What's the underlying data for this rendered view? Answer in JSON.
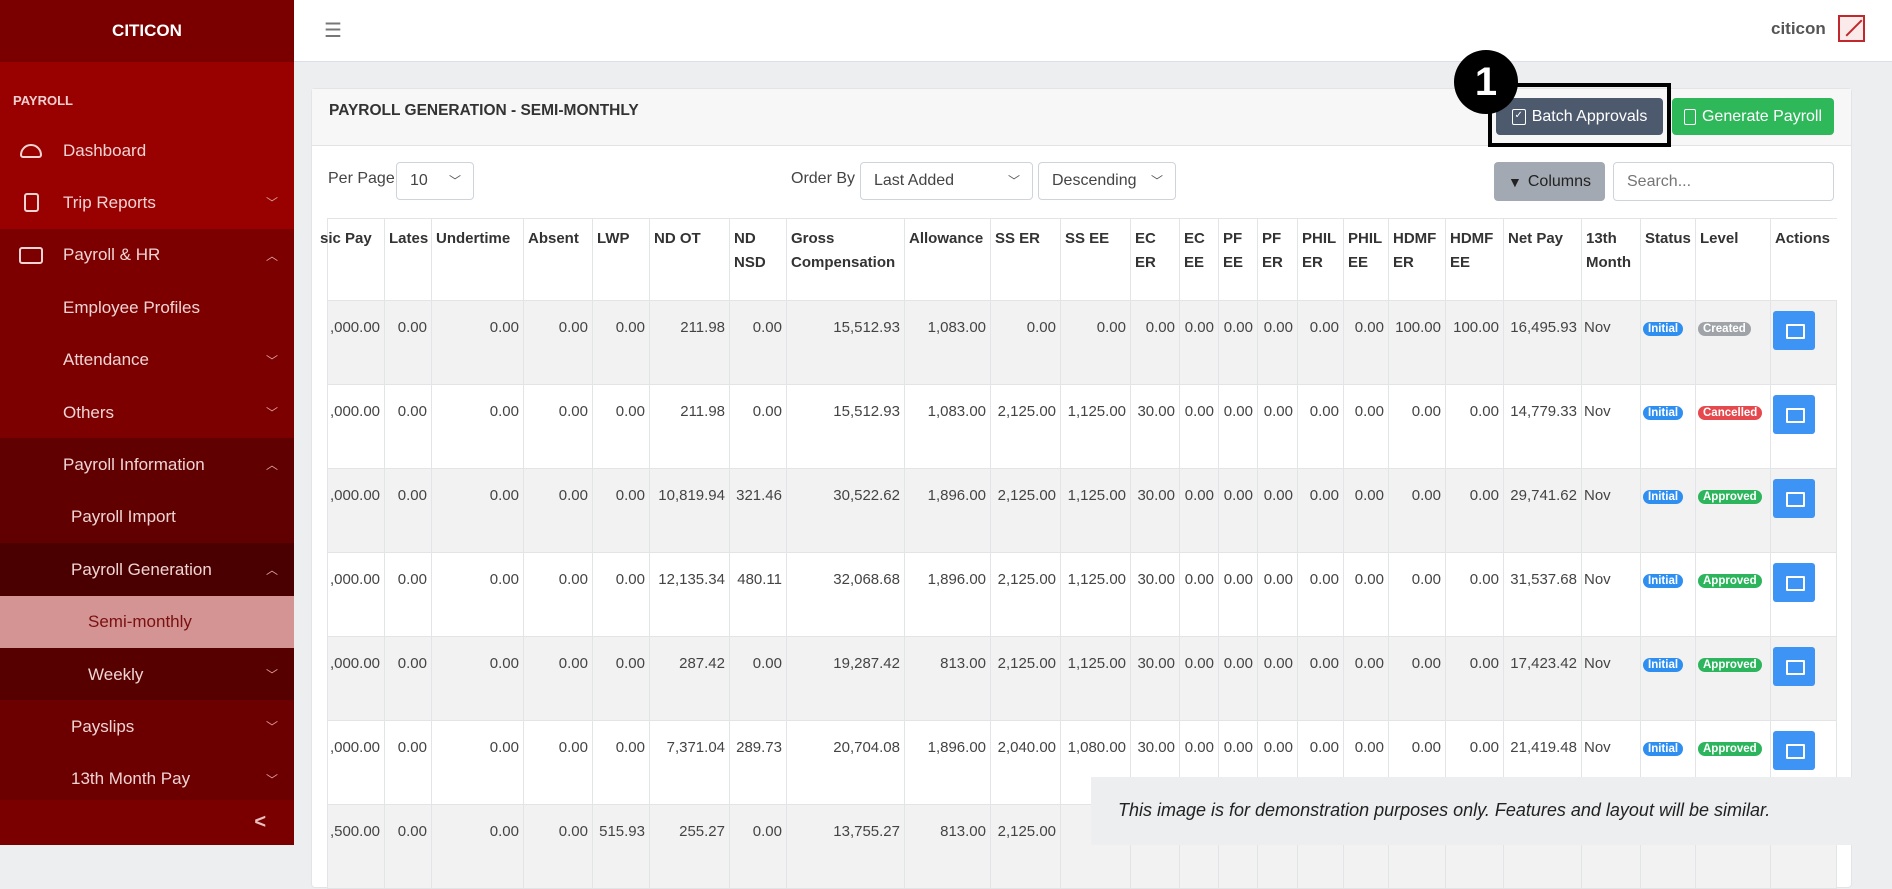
{
  "sidebar": {
    "brand": "CITICON",
    "section": "PAYROLL",
    "items": [
      {
        "label": "Dashboard",
        "icon": "dashboard-gauge-icon"
      },
      {
        "label": "Trip Reports",
        "icon": "document-icon",
        "chevron": "down"
      },
      {
        "label": "Payroll & HR",
        "icon": "wallet-icon",
        "chevron": "up"
      },
      {
        "label": "Employee Profiles"
      },
      {
        "label": "Attendance",
        "chevron": "down"
      },
      {
        "label": "Others",
        "chevron": "down"
      },
      {
        "label": "Payroll Information",
        "chevron": "up"
      },
      {
        "label": "Payroll Import"
      },
      {
        "label": "Payroll Generation",
        "chevron": "up"
      },
      {
        "label": "Semi-monthly",
        "active": true
      },
      {
        "label": "Weekly",
        "chevron": "down"
      },
      {
        "label": "Payslips",
        "chevron": "down"
      },
      {
        "label": "13th Month Pay",
        "chevron": "down"
      }
    ],
    "collapse_label": "<"
  },
  "topbar": {
    "menu_icon": "☰",
    "user": "citicon"
  },
  "card": {
    "title": "PAYROLL GENERATION - SEMI-MONTHLY",
    "batch_approvals": "Batch Approvals",
    "generate_payroll": "Generate Payroll",
    "annotation": "1"
  },
  "controls": {
    "per_page_label": "Per Page",
    "per_page_value": "10",
    "order_by_label": "Order By",
    "order_by_value": "Last Added",
    "direction_value": "Descending",
    "columns_label": "Columns",
    "search_placeholder": "Search..."
  },
  "colors": {
    "accent": "#990000",
    "primary": "#3d94f5",
    "success": "#2db55d",
    "danger": "#e5484d",
    "secondary": "#a0a4a8"
  },
  "table": {
    "headers": [
      "sic Pay",
      "Lates",
      "Undertime",
      "Absent",
      "LWP",
      "ND OT",
      "ND NSD",
      "Gross Compensation",
      "Allowance",
      "SS ER",
      "SS EE",
      "EC ER",
      "EC EE",
      "PF EE",
      "PF ER",
      "PHIL ER",
      "PHIL EE",
      "HDMF ER",
      "HDMF EE",
      "Net Pay",
      "13th Month",
      "Status",
      "Level",
      "Actions"
    ],
    "rows": [
      {
        "cells": [
          ",000.00",
          "0.00",
          "0.00",
          "0.00",
          "0.00",
          "211.98",
          "0.00",
          "15,512.93",
          "1,083.00",
          "0.00",
          "0.00",
          "0.00",
          "0.00",
          "0.00",
          "0.00",
          "0.00",
          "0.00",
          "100.00",
          "100.00",
          "16,495.93",
          "Nov"
        ],
        "status": "Initial",
        "level": "Created"
      },
      {
        "cells": [
          ",000.00",
          "0.00",
          "0.00",
          "0.00",
          "0.00",
          "211.98",
          "0.00",
          "15,512.93",
          "1,083.00",
          "2,125.00",
          "1,125.00",
          "30.00",
          "0.00",
          "0.00",
          "0.00",
          "0.00",
          "0.00",
          "0.00",
          "0.00",
          "14,779.33",
          "Nov"
        ],
        "status": "Initial",
        "level": "Cancelled"
      },
      {
        "cells": [
          ",000.00",
          "0.00",
          "0.00",
          "0.00",
          "0.00",
          "10,819.94",
          "321.46",
          "30,522.62",
          "1,896.00",
          "2,125.00",
          "1,125.00",
          "30.00",
          "0.00",
          "0.00",
          "0.00",
          "0.00",
          "0.00",
          "0.00",
          "0.00",
          "29,741.62",
          "Nov"
        ],
        "status": "Initial",
        "level": "Approved"
      },
      {
        "cells": [
          ",000.00",
          "0.00",
          "0.00",
          "0.00",
          "0.00",
          "12,135.34",
          "480.11",
          "32,068.68",
          "1,896.00",
          "2,125.00",
          "1,125.00",
          "30.00",
          "0.00",
          "0.00",
          "0.00",
          "0.00",
          "0.00",
          "0.00",
          "0.00",
          "31,537.68",
          "Nov"
        ],
        "status": "Initial",
        "level": "Approved"
      },
      {
        "cells": [
          ",000.00",
          "0.00",
          "0.00",
          "0.00",
          "0.00",
          "287.42",
          "0.00",
          "19,287.42",
          "813.00",
          "2,125.00",
          "1,125.00",
          "30.00",
          "0.00",
          "0.00",
          "0.00",
          "0.00",
          "0.00",
          "0.00",
          "0.00",
          "17,423.42",
          "Nov"
        ],
        "status": "Initial",
        "level": "Approved"
      },
      {
        "cells": [
          ",000.00",
          "0.00",
          "0.00",
          "0.00",
          "0.00",
          "7,371.04",
          "289.73",
          "20,704.08",
          "1,896.00",
          "2,040.00",
          "1,080.00",
          "30.00",
          "0.00",
          "0.00",
          "0.00",
          "0.00",
          "0.00",
          "0.00",
          "0.00",
          "21,419.48",
          "Nov"
        ],
        "status": "Initial",
        "level": "Approved"
      },
      {
        "cells": [
          ",500.00",
          "0.00",
          "0.00",
          "0.00",
          "515.93",
          "255.27",
          "0.00",
          "13,755.27",
          "813.00",
          "2,125.00",
          "1,12",
          "",
          "",
          "",
          "",
          "",
          "",
          "",
          "",
          "",
          ""
        ],
        "status": "",
        "level": ""
      }
    ]
  },
  "disclaimer": "This image is for demonstration purposes only. Features and layout will be similar."
}
